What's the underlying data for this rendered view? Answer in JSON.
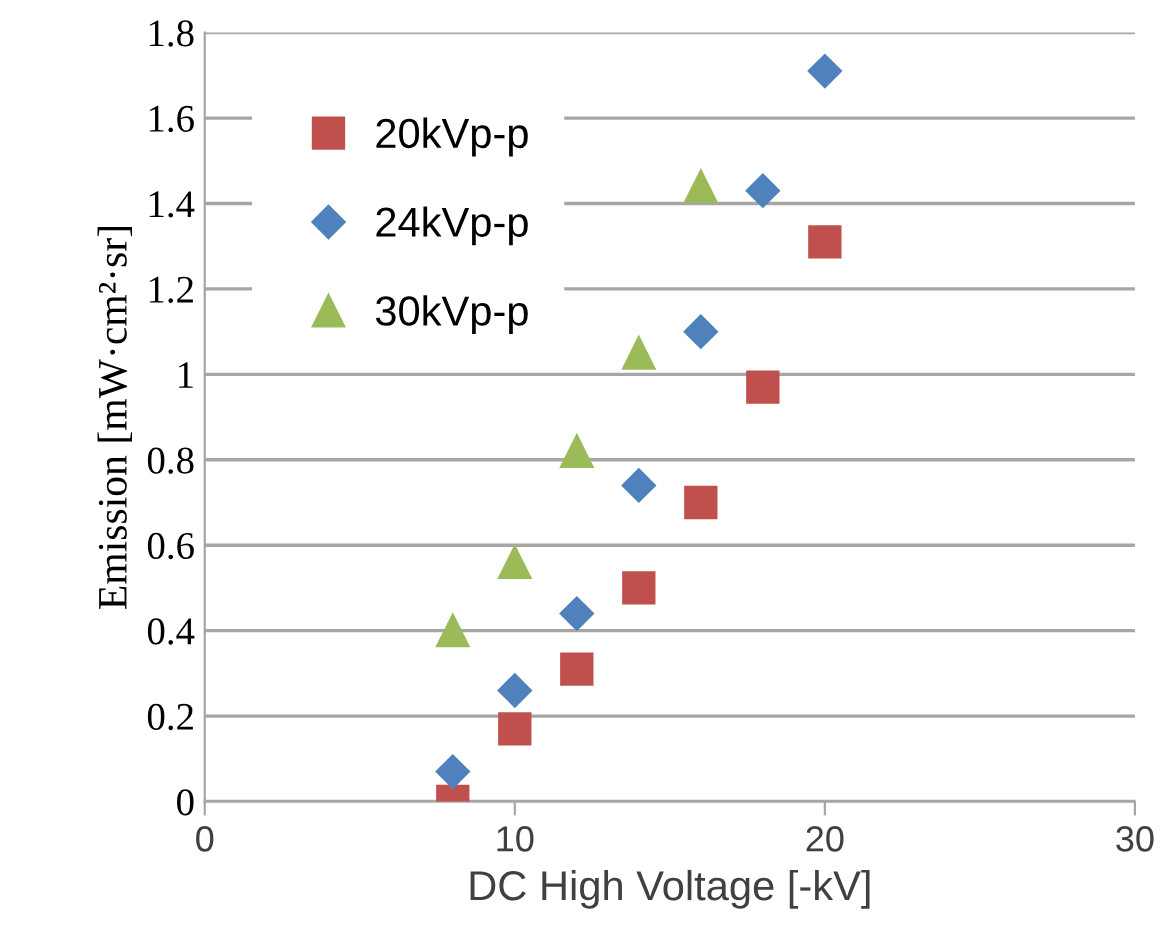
{
  "chart_data": {
    "type": "scatter",
    "xlabel": "DC High Voltage [-kV]",
    "ylabel": "Emission [mW·cm²·sr]",
    "xlim": [
      0,
      30
    ],
    "xticks": [
      0,
      10,
      20,
      30
    ],
    "ylim": [
      0,
      1.8
    ],
    "yticks": [
      0,
      0.2,
      0.4,
      0.6,
      0.8,
      1,
      1.2,
      1.4,
      1.6,
      1.8
    ],
    "grid": "y",
    "legend": "top left",
    "series": [
      {
        "name": "20kVp-p",
        "color": "#c0504d",
        "marker": "square",
        "x": [
          8,
          10,
          12,
          14,
          16,
          18,
          20
        ],
        "values": [
          0.0,
          0.17,
          0.31,
          0.5,
          0.7,
          0.97,
          1.31
        ]
      },
      {
        "name": "24kVp-p",
        "color": "#4f81bd",
        "marker": "diamond",
        "x": [
          8,
          10,
          12,
          14,
          16,
          18,
          20
        ],
        "values": [
          0.07,
          0.26,
          0.44,
          0.74,
          1.1,
          1.43,
          1.71
        ]
      },
      {
        "name": "30kVp-p",
        "color": "#9bbb59",
        "marker": "triangle",
        "x": [
          8,
          10,
          12,
          14,
          16
        ],
        "values": [
          0.4,
          0.56,
          0.82,
          1.05,
          1.44
        ]
      }
    ]
  }
}
